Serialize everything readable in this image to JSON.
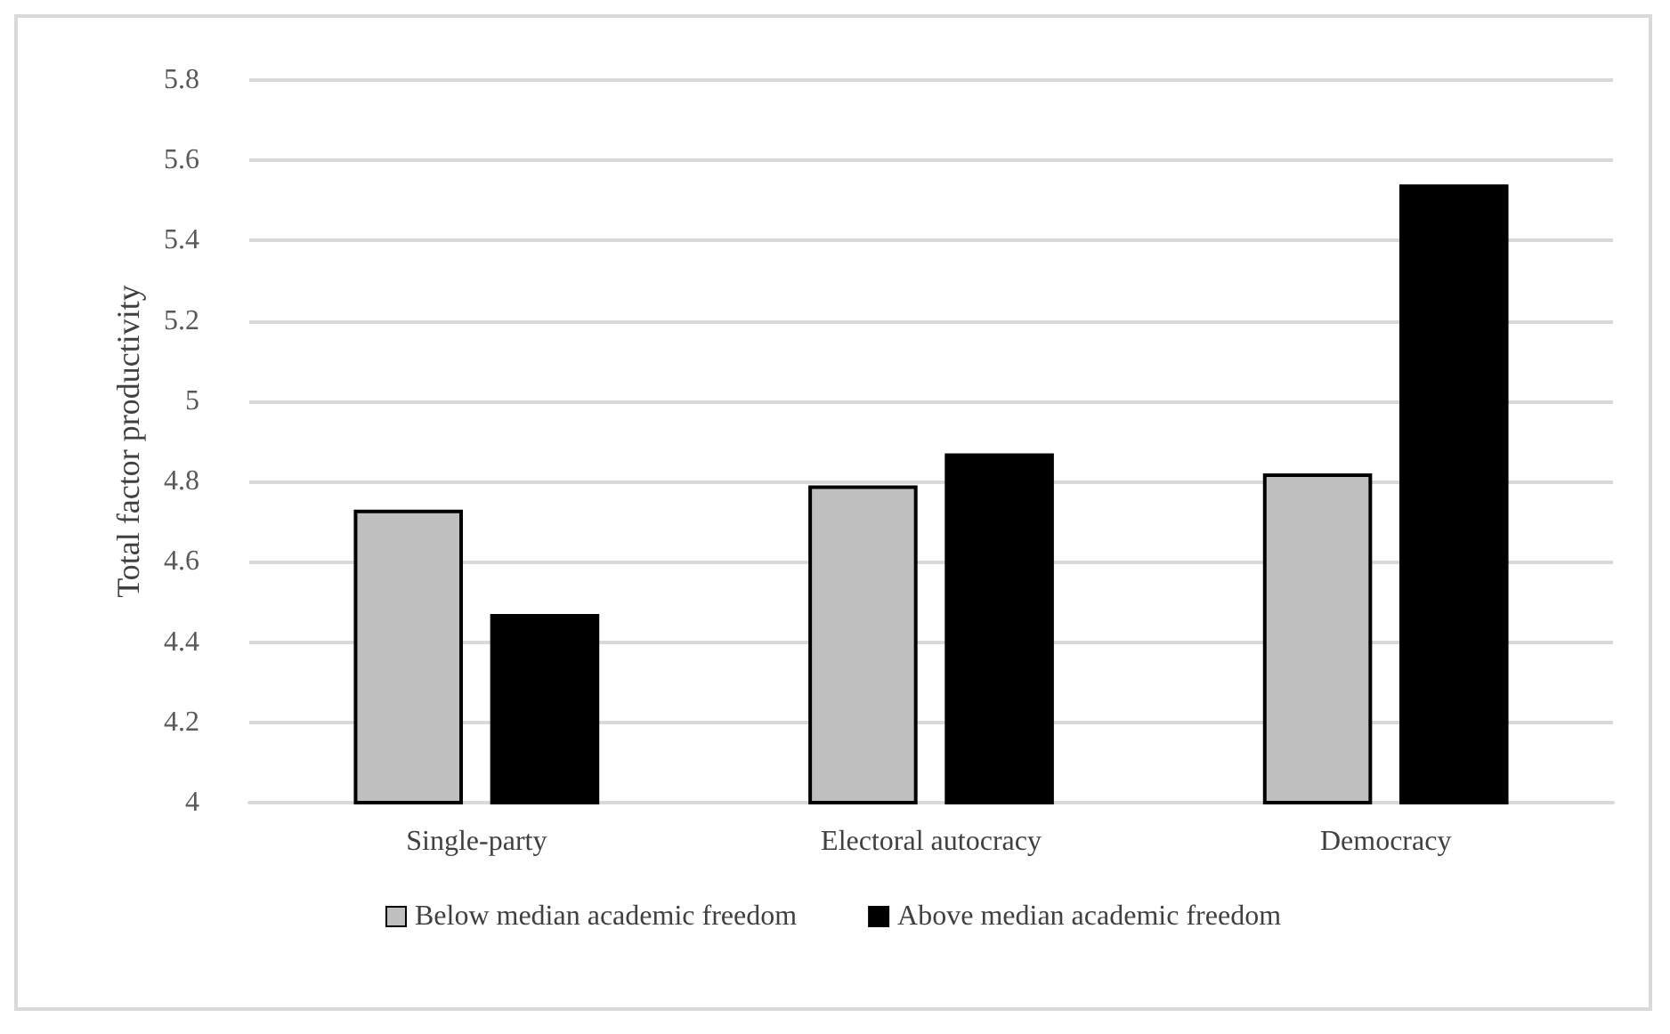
{
  "chart_data": {
    "type": "bar",
    "ylabel": "Total factor productivity",
    "categories": [
      "Single-party",
      "Electoral autocracy",
      "Democracy"
    ],
    "series": [
      {
        "name": "Below median academic freedom",
        "color": "#bfbfbf",
        "values": [
          4.73,
          4.79,
          4.82
        ]
      },
      {
        "name": "Above median academic freedom",
        "color": "#000000",
        "values": [
          4.47,
          4.87,
          5.54
        ]
      }
    ],
    "ylim": [
      4,
      5.8
    ],
    "yticks": [
      4,
      4.2,
      4.4,
      4.6,
      4.8,
      5,
      5.2,
      5.4,
      5.6,
      5.8
    ],
    "grid": "y",
    "legend": "bottom"
  }
}
